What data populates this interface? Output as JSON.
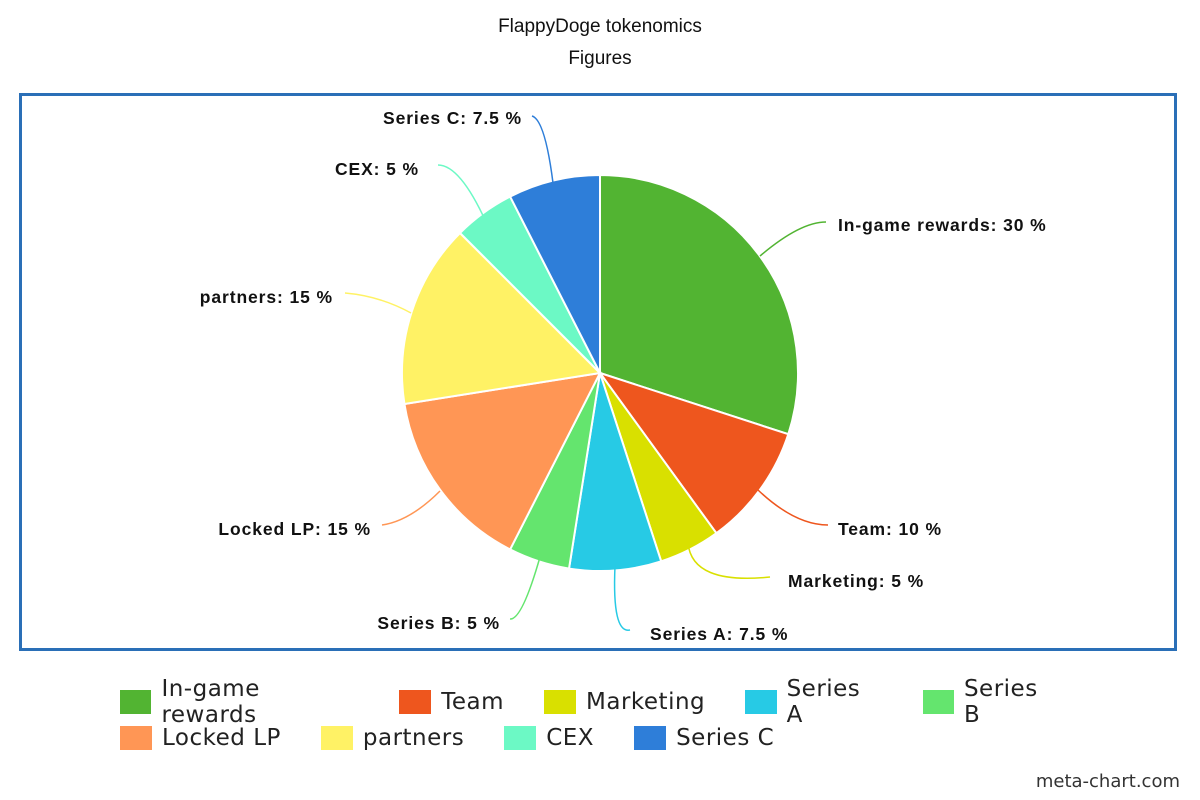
{
  "chart_data": {
    "type": "pie",
    "title": "FlappyDoge tokenomics",
    "subtitle": "Figures",
    "unit": "%",
    "slices": [
      {
        "label": "In-game rewards",
        "value": 30,
        "color": "#52b432"
      },
      {
        "label": "Team",
        "value": 10,
        "color": "#ee561e"
      },
      {
        "label": "Marketing",
        "value": 5,
        "color": "#d9e000"
      },
      {
        "label": "Series A",
        "value": 7.5,
        "color": "#27cae5"
      },
      {
        "label": "Series B",
        "value": 5,
        "color": "#64e56e"
      },
      {
        "label": "Locked LP",
        "value": 15,
        "color": "#ff9655"
      },
      {
        "label": "partners",
        "value": 15,
        "color": "#fff265"
      },
      {
        "label": "CEX",
        "value": 5,
        "color": "#6cf9c5"
      },
      {
        "label": "Series C",
        "value": 7.5,
        "color": "#2e7ed9"
      }
    ],
    "slice_labels": [
      "In-game rewards: 30 %",
      "Team: 10 %",
      "Marketing: 5 %",
      "Series A: 7.5 %",
      "Series B: 5 %",
      "Locked LP: 15 %",
      "partners: 15 %",
      "CEX: 5 %",
      "Series C: 7.5 %"
    ],
    "legend": {
      "placement": "bottom",
      "rows": [
        [
          {
            "label": "In-game rewards",
            "color": "#52b432"
          },
          {
            "label": "Team",
            "color": "#ee561e"
          },
          {
            "label": "Marketing",
            "color": "#d9e000"
          },
          {
            "label": "Series A",
            "color": "#27cae5"
          },
          {
            "label": "Series B",
            "color": "#64e56e"
          }
        ],
        [
          {
            "label": "Locked LP",
            "color": "#ff9655"
          },
          {
            "label": "partners",
            "color": "#fff265"
          },
          {
            "label": "CEX",
            "color": "#6cf9c5"
          },
          {
            "label": "Series C",
            "color": "#2e7ed9"
          }
        ]
      ]
    },
    "frame_color": "#2a6fb7"
  },
  "watermark": "meta-chart.com"
}
